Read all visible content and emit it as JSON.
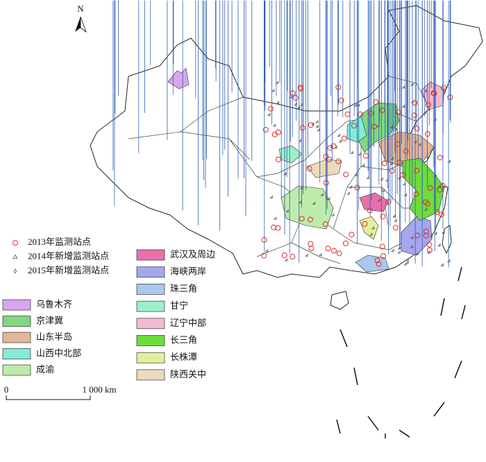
{
  "north": "N",
  "scale": {
    "start": "0",
    "end": "1 000 km"
  },
  "legend": {
    "markers": [
      {
        "label": "2013年监测站点",
        "symbol": "circle",
        "color": "#d9302a"
      },
      {
        "label": "2014年新增监测站点",
        "symbol": "triangle",
        "color": "#555555"
      },
      {
        "label": "2015年新增监测站点",
        "symbol": "diamond",
        "color": "#2f5fb3"
      }
    ],
    "regions": [
      {
        "label": "乌鲁木齐",
        "color": "#d8a6ee"
      },
      {
        "label": "京津冀",
        "color": "#80d880"
      },
      {
        "label": "山东半岛",
        "color": "#e4b598"
      },
      {
        "label": "山西中北部",
        "color": "#84ecd8"
      },
      {
        "label": "成渝",
        "color": "#bdecaa"
      },
      {
        "label": "武汉及周边",
        "color": "#ea70ac"
      },
      {
        "label": "海峡两岸",
        "color": "#a6a6ee"
      },
      {
        "label": "珠三角",
        "color": "#a8c8ee"
      },
      {
        "label": "甘宁",
        "color": "#9cf0c8"
      },
      {
        "label": "辽宁中部",
        "color": "#f4bad2"
      },
      {
        "label": "长三角",
        "color": "#6edc3c"
      },
      {
        "label": "长株潭",
        "color": "#e4ee9c"
      },
      {
        "label": "陕西关中",
        "color": "#ebdabd"
      }
    ]
  }
}
